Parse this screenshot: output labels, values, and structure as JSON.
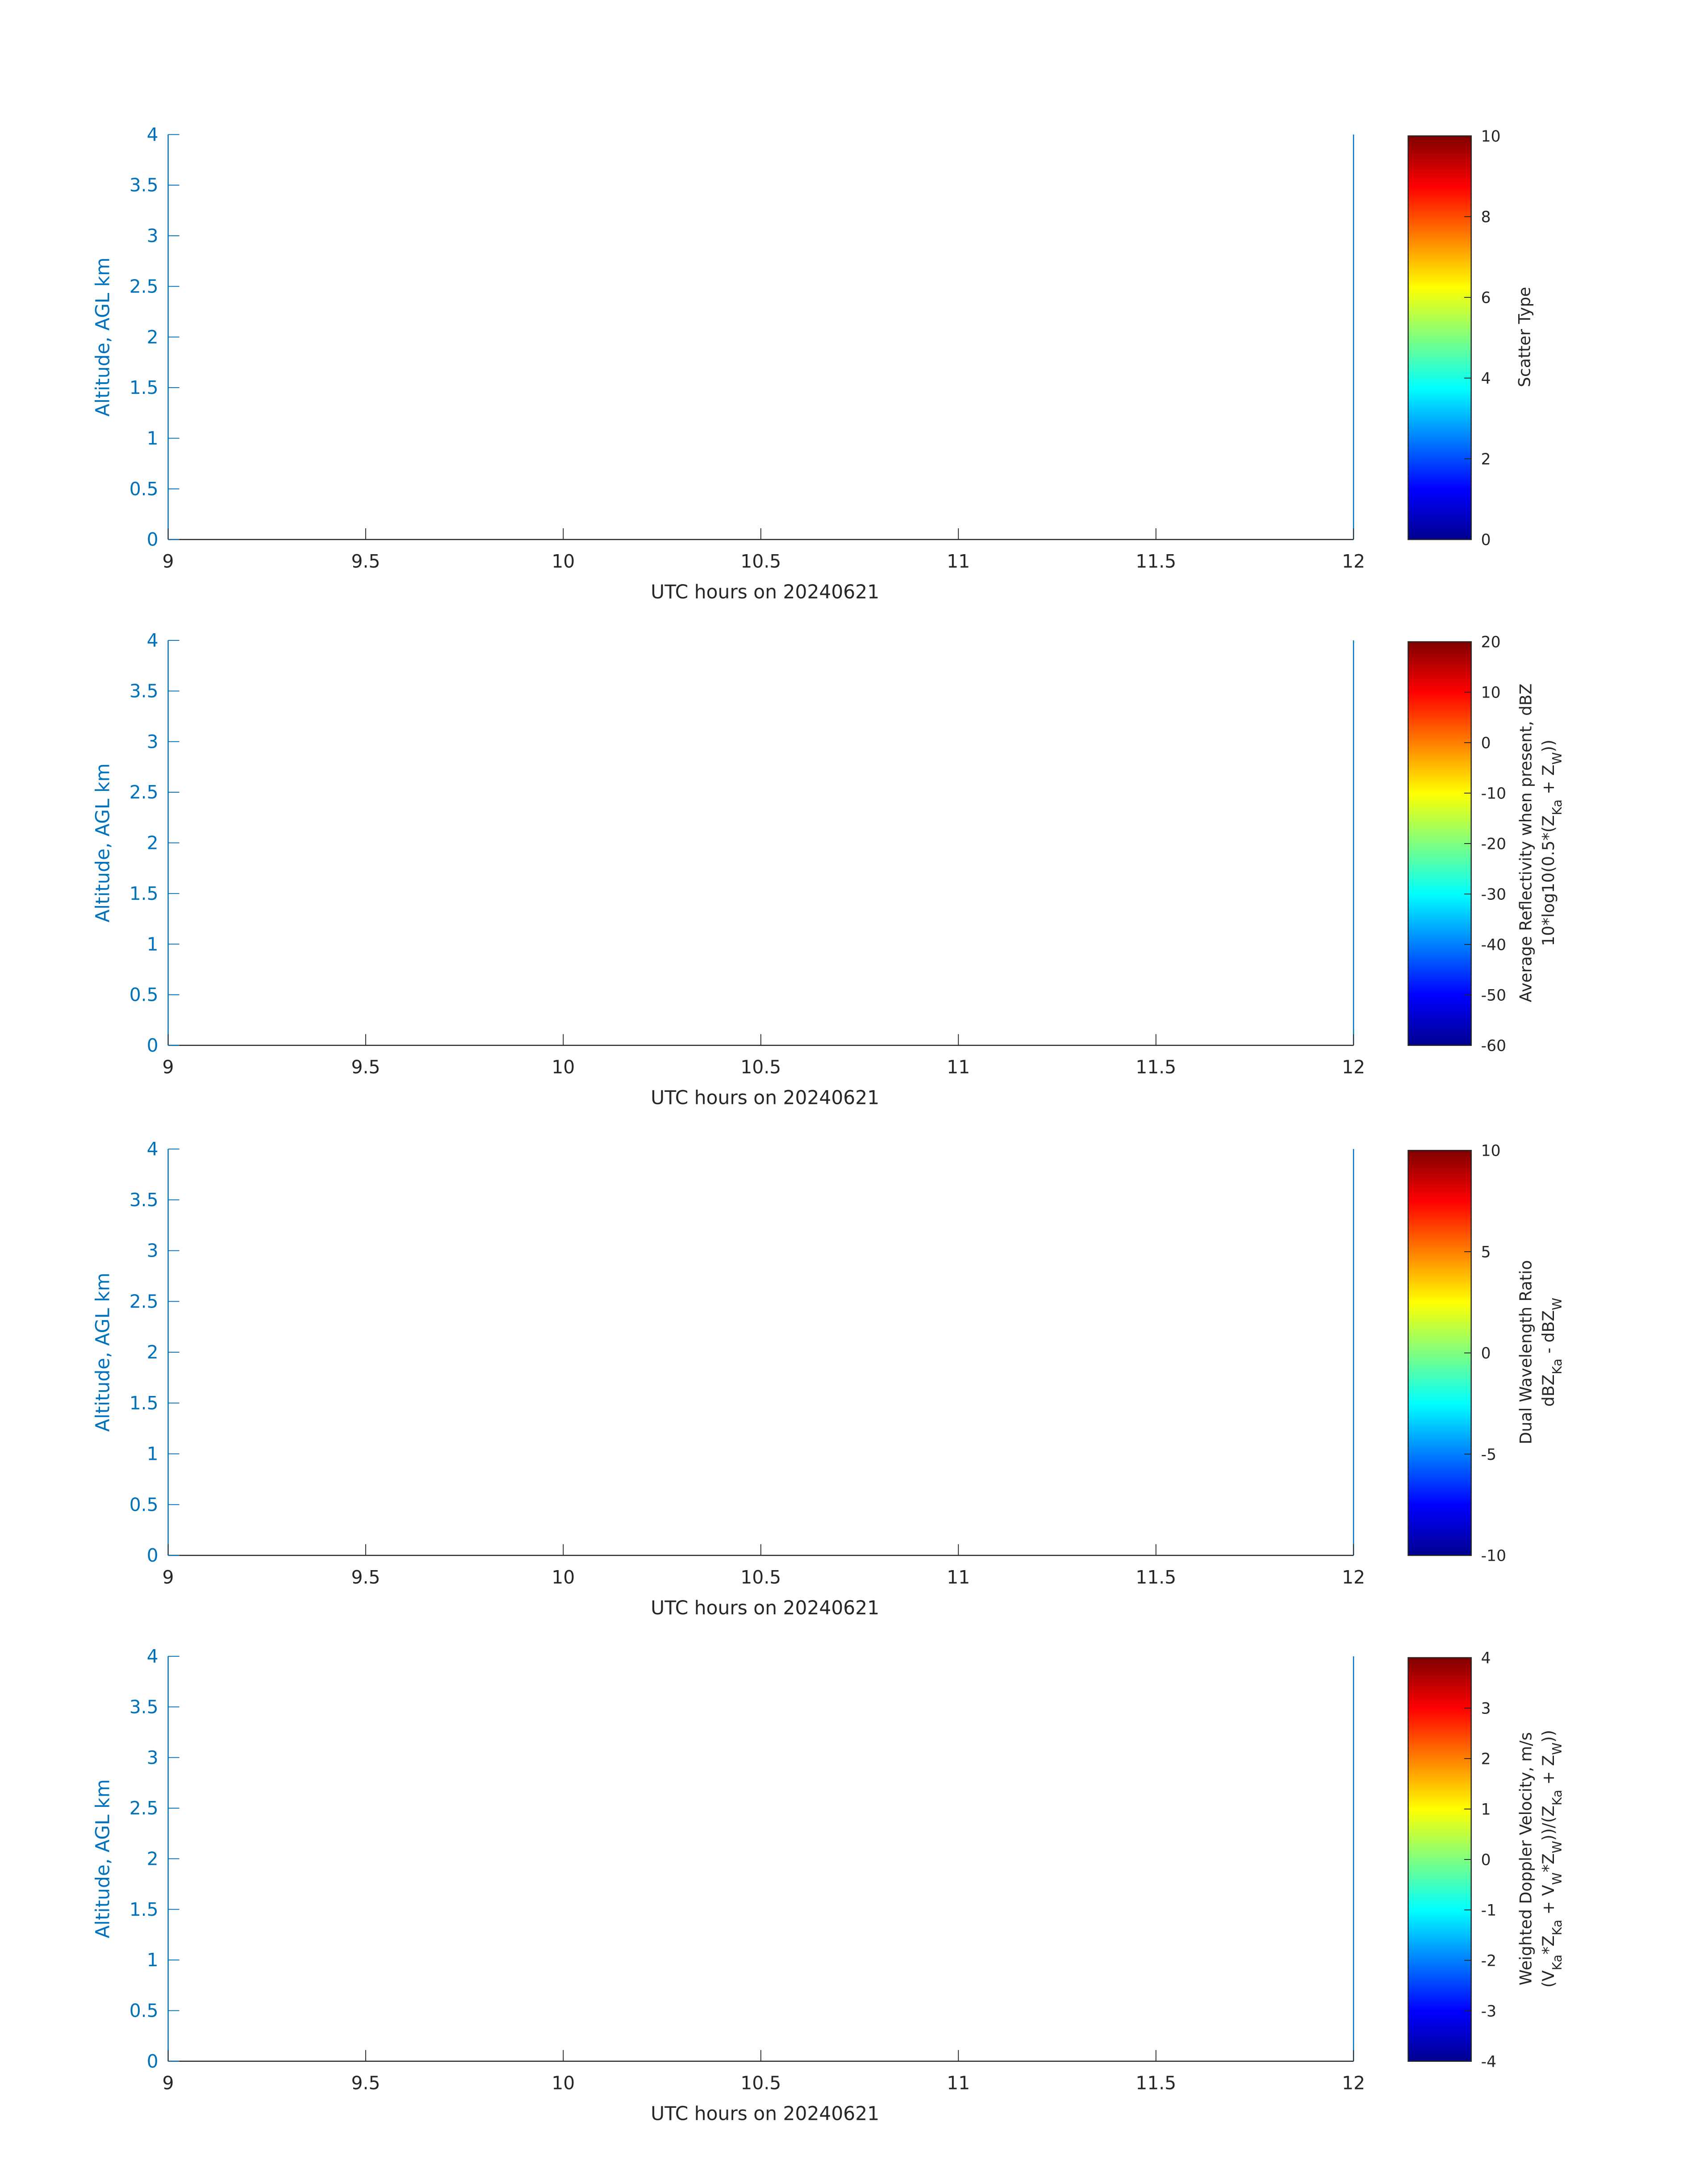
{
  "colors": {
    "axis": "#0072BD",
    "text": "#262626",
    "colormap": "jet"
  },
  "chart_data": [
    {
      "type": "heatmap",
      "xlabel": "UTC hours on 20240621",
      "ylabel": "Altitude, AGL km",
      "xlim": [
        9,
        12
      ],
      "ylim": [
        0,
        4
      ],
      "xticks": [
        "9",
        "9.5",
        "10",
        "10.5",
        "11",
        "11.5",
        "12"
      ],
      "yticks": [
        "0",
        "0.5",
        "1",
        "1.5",
        "2",
        "2.5",
        "3",
        "3.5",
        "4"
      ],
      "values": [],
      "colorbar": {
        "range": [
          0,
          10
        ],
        "ticks": [
          "0",
          "2",
          "4",
          "6",
          "8",
          "10"
        ],
        "label_lines": [
          [
            {
              "t": "Scatter Type"
            }
          ]
        ]
      }
    },
    {
      "type": "heatmap",
      "xlabel": "UTC hours on 20240621",
      "ylabel": "Altitude, AGL km",
      "xlim": [
        9,
        12
      ],
      "ylim": [
        0,
        4
      ],
      "xticks": [
        "9",
        "9.5",
        "10",
        "10.5",
        "11",
        "11.5",
        "12"
      ],
      "yticks": [
        "0",
        "0.5",
        "1",
        "1.5",
        "2",
        "2.5",
        "3",
        "3.5",
        "4"
      ],
      "values": [],
      "colorbar": {
        "range": [
          -60,
          20
        ],
        "ticks": [
          "-60",
          "-50",
          "-40",
          "-30",
          "-20",
          "-10",
          "0",
          "10",
          "20"
        ],
        "label_lines": [
          [
            {
              "t": "Average Reflectivity when present, dBZ"
            }
          ],
          [
            {
              "t": "10*log10(0.5*(Z"
            },
            {
              "t": "Ka",
              "sub": true
            },
            {
              "t": " + Z"
            },
            {
              "t": "W",
              "sub": true
            },
            {
              "t": "))"
            }
          ]
        ]
      }
    },
    {
      "type": "heatmap",
      "xlabel": "UTC hours on 20240621",
      "ylabel": "Altitude, AGL km",
      "xlim": [
        9,
        12
      ],
      "ylim": [
        0,
        4
      ],
      "xticks": [
        "9",
        "9.5",
        "10",
        "10.5",
        "11",
        "11.5",
        "12"
      ],
      "yticks": [
        "0",
        "0.5",
        "1",
        "1.5",
        "2",
        "2.5",
        "3",
        "3.5",
        "4"
      ],
      "values": [],
      "colorbar": {
        "range": [
          -10,
          10
        ],
        "ticks": [
          "-10",
          "-5",
          "0",
          "5",
          "10"
        ],
        "label_lines": [
          [
            {
              "t": "Dual Wavelength Ratio"
            }
          ],
          [
            {
              "t": "dBZ"
            },
            {
              "t": "Ka",
              "sub": true
            },
            {
              "t": " - dBZ"
            },
            {
              "t": "W",
              "sub": true
            }
          ]
        ]
      }
    },
    {
      "type": "heatmap",
      "xlabel": "UTC hours on 20240621",
      "ylabel": "Altitude, AGL km",
      "xlim": [
        9,
        12
      ],
      "ylim": [
        0,
        4
      ],
      "xticks": [
        "9",
        "9.5",
        "10",
        "10.5",
        "11",
        "11.5",
        "12"
      ],
      "yticks": [
        "0",
        "0.5",
        "1",
        "1.5",
        "2",
        "2.5",
        "3",
        "3.5",
        "4"
      ],
      "values": [],
      "colorbar": {
        "range": [
          -4,
          4
        ],
        "ticks": [
          "-4",
          "-3",
          "-2",
          "-1",
          "0",
          "1",
          "2",
          "3",
          "4"
        ],
        "label_lines": [
          [
            {
              "t": "Weighted Doppler Velocity, m/s"
            }
          ],
          [
            {
              "t": "(V"
            },
            {
              "t": "Ka",
              "sub": true
            },
            {
              "t": "*Z"
            },
            {
              "t": "Ka",
              "sub": true
            },
            {
              "t": " + V"
            },
            {
              "t": "W",
              "sub": true
            },
            {
              "t": "*Z"
            },
            {
              "t": "W",
              "sub": true
            },
            {
              "t": "))/(Z"
            },
            {
              "t": "Ka",
              "sub": true
            },
            {
              "t": " + Z"
            },
            {
              "t": "W",
              "sub": true
            },
            {
              "t": "))"
            }
          ]
        ]
      }
    }
  ]
}
